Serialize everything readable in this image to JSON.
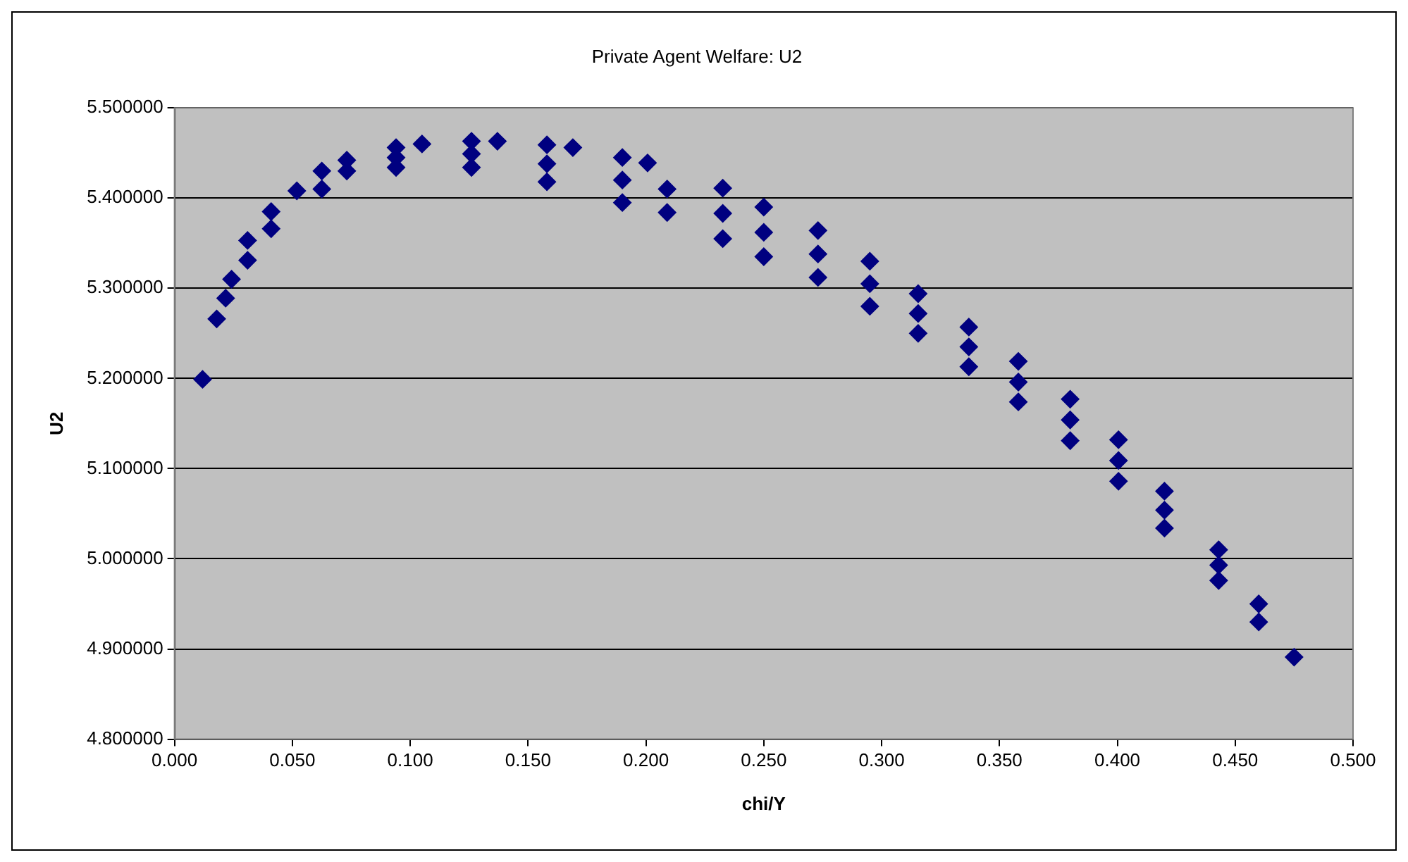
{
  "chart_data": {
    "type": "scatter",
    "title": "Private Agent Welfare: U2",
    "xlabel": "chi/Y",
    "ylabel": "U2",
    "color": "#000080",
    "marker": "diamond",
    "grid": "y",
    "legend": false,
    "x": [
      0.0119,
      0.0179,
      0.0217,
      0.0242,
      0.031,
      0.031,
      0.041,
      0.041,
      0.0519,
      0.0625,
      0.0625,
      0.0731,
      0.0731,
      0.094,
      0.094,
      0.094,
      0.105,
      0.126,
      0.126,
      0.126,
      0.137,
      0.158,
      0.158,
      0.158,
      0.169,
      0.19,
      0.19,
      0.19,
      0.2007,
      0.209,
      0.209,
      0.2326,
      0.2326,
      0.2326,
      0.25,
      0.25,
      0.25,
      0.273,
      0.273,
      0.273,
      0.295,
      0.295,
      0.295,
      0.3155,
      0.3155,
      0.3155,
      0.337,
      0.337,
      0.337,
      0.358,
      0.358,
      0.358,
      0.38,
      0.38,
      0.38,
      0.4005,
      0.4005,
      0.4005,
      0.42,
      0.42,
      0.42,
      0.443,
      0.443,
      0.443,
      0.46,
      0.46,
      0.475
    ],
    "values": [
      5.199,
      5.266,
      5.289,
      5.31,
      5.353,
      5.331,
      5.366,
      5.385,
      5.408,
      5.41,
      5.43,
      5.442,
      5.43,
      5.434,
      5.456,
      5.445,
      5.46,
      5.434,
      5.463,
      5.449,
      5.463,
      5.418,
      5.459,
      5.438,
      5.456,
      5.395,
      5.445,
      5.42,
      5.439,
      5.384,
      5.41,
      5.411,
      5.355,
      5.383,
      5.39,
      5.335,
      5.362,
      5.364,
      5.312,
      5.338,
      5.33,
      5.28,
      5.305,
      5.294,
      5.25,
      5.272,
      5.257,
      5.213,
      5.235,
      5.219,
      5.174,
      5.196,
      5.177,
      5.131,
      5.154,
      5.132,
      5.086,
      5.109,
      5.075,
      5.034,
      5.054,
      5.01,
      4.976,
      4.993,
      4.95,
      4.93,
      4.891
    ],
    "xlim": [
      0,
      0.5
    ],
    "xticks": [
      {
        "value": 0,
        "label": "0.000"
      },
      {
        "value": 0.05,
        "label": "0.050"
      },
      {
        "value": 0.1,
        "label": "0.100"
      },
      {
        "value": 0.15,
        "label": "0.150"
      },
      {
        "value": 0.2,
        "label": "0.200"
      },
      {
        "value": 0.25,
        "label": "0.250"
      },
      {
        "value": 0.3,
        "label": "0.300"
      },
      {
        "value": 0.35,
        "label": "0.350"
      },
      {
        "value": 0.4,
        "label": "0.400"
      },
      {
        "value": 0.45,
        "label": "0.450"
      },
      {
        "value": 0.5,
        "label": "0.500"
      }
    ],
    "ylim": [
      4.8,
      5.5
    ],
    "yticks": [
      {
        "value": 4.8,
        "label": "4.800000"
      },
      {
        "value": 4.9,
        "label": "4.900000"
      },
      {
        "value": 5.0,
        "label": "5.000000"
      },
      {
        "value": 5.1,
        "label": "5.100000"
      },
      {
        "value": 5.2,
        "label": "5.200000"
      },
      {
        "value": 5.3,
        "label": "5.300000"
      },
      {
        "value": 5.4,
        "label": "5.400000"
      },
      {
        "value": 5.5,
        "label": "5.500000"
      }
    ]
  }
}
